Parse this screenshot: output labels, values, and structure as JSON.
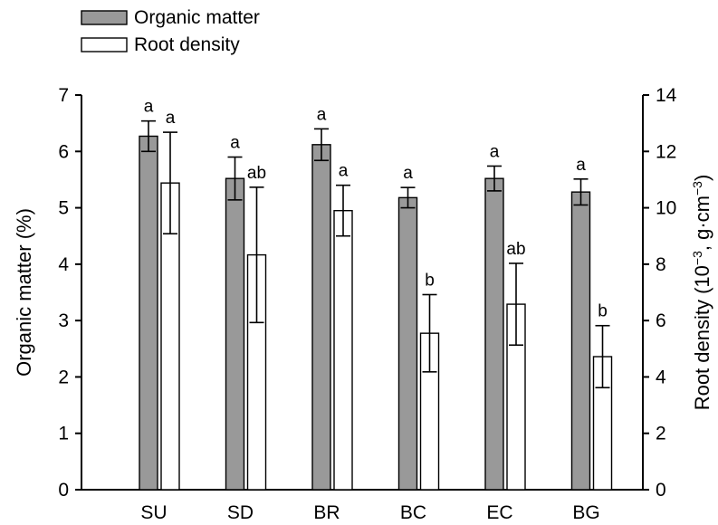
{
  "chart_data": {
    "type": "bar",
    "categories": [
      "SU",
      "SD",
      "BR",
      "BC",
      "EC",
      "BG"
    ],
    "series": [
      {
        "name": "Organic matter",
        "axis": "left",
        "color": "#999999",
        "values": [
          6.27,
          5.52,
          6.12,
          5.18,
          5.52,
          5.28
        ],
        "errors": [
          0.27,
          0.38,
          0.28,
          0.18,
          0.22,
          0.23
        ],
        "labels": [
          "a",
          "a",
          "a",
          "a",
          "a",
          "a"
        ]
      },
      {
        "name": "Root density",
        "axis": "right",
        "color": "#ffffff",
        "values": [
          10.88,
          8.33,
          9.9,
          5.55,
          6.58,
          4.72
        ],
        "errors": [
          1.8,
          2.4,
          0.9,
          1.37,
          1.45,
          1.1
        ],
        "labels": [
          "a",
          "ab",
          "a",
          "b",
          "ab",
          "b"
        ]
      }
    ],
    "left_axis": {
      "label": "Organic matter (%)",
      "ylim": [
        0,
        7
      ],
      "ticks": [
        "0",
        "1",
        "2",
        "3",
        "4",
        "5",
        "6",
        "7"
      ]
    },
    "right_axis": {
      "label_parts": [
        {
          "text": "Root density (10",
          "sup": false
        },
        {
          "text": "−3",
          "sup": true
        },
        {
          "text": ", g·cm",
          "sup": false
        },
        {
          "text": "−3",
          "sup": true
        },
        {
          "text": ")",
          "sup": false
        }
      ],
      "ylim": [
        0,
        14
      ],
      "ticks": [
        "0",
        "2",
        "4",
        "6",
        "8",
        "10",
        "12",
        "14"
      ]
    },
    "grid": false,
    "legend_position": "top-left",
    "title": ""
  }
}
